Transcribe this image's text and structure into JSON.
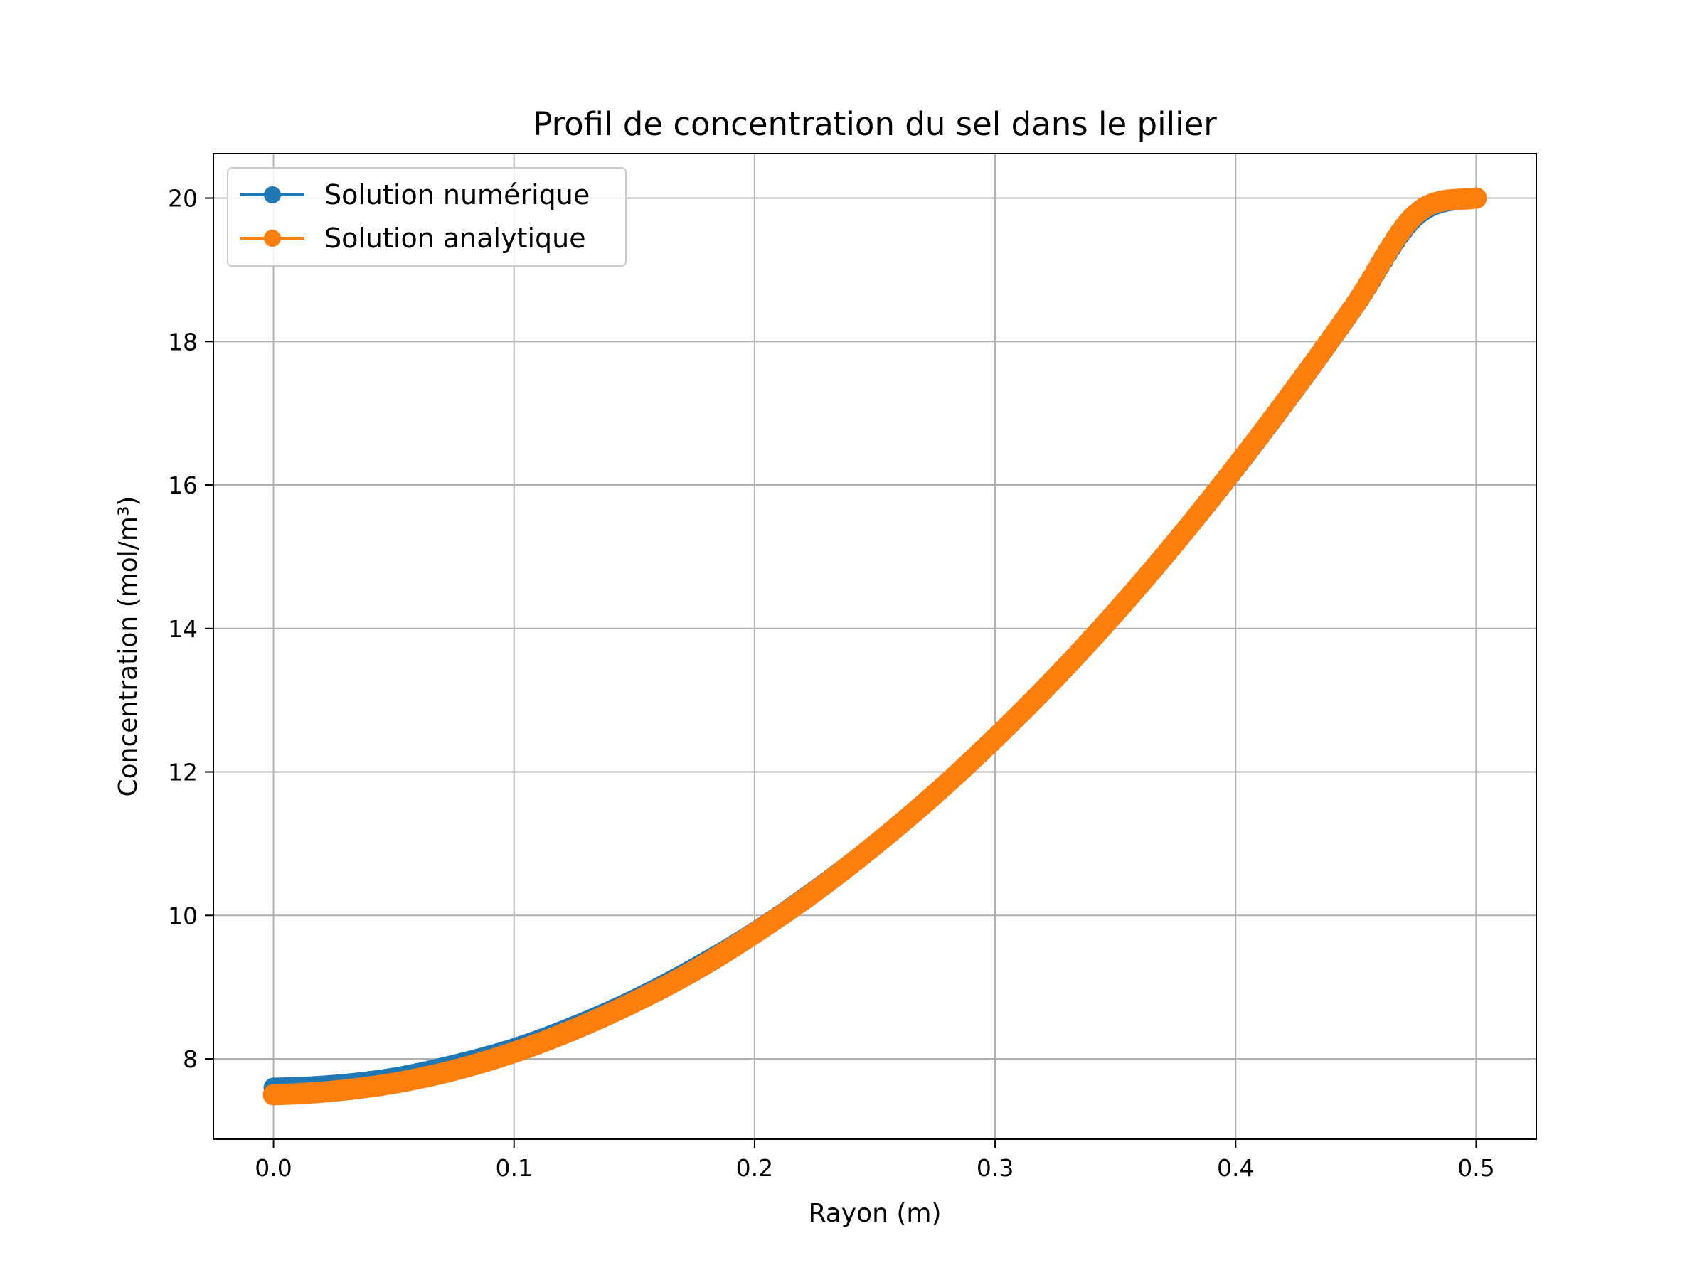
{
  "chart_data": {
    "type": "line",
    "title": "Profil de concentration du sel dans le pilier",
    "xlabel": "Rayon (m)",
    "ylabel": "Concentration (mol/m³)",
    "xlim": [
      -0.025,
      0.525
    ],
    "ylim": [
      6.88,
      20.62
    ],
    "x_ticks": [
      0.0,
      0.1,
      0.2,
      0.3,
      0.4,
      0.5
    ],
    "x_tick_labels": [
      "0.0",
      "0.1",
      "0.2",
      "0.3",
      "0.4",
      "0.5"
    ],
    "y_ticks": [
      8,
      10,
      12,
      14,
      16,
      18,
      20
    ],
    "y_tick_labels": [
      "8",
      "10",
      "12",
      "14",
      "16",
      "18",
      "20"
    ],
    "grid": true,
    "legend_position": "top-left",
    "series": [
      {
        "name": "Solution numérique",
        "color": "#1f77b4",
        "marker": "circle",
        "x": [
          0.0,
          0.025,
          0.05,
          0.075,
          0.1,
          0.125,
          0.15,
          0.175,
          0.2,
          0.225,
          0.25,
          0.275,
          0.3,
          0.325,
          0.35,
          0.375,
          0.4,
          0.425,
          0.45,
          0.475,
          0.5
        ],
        "y": [
          7.6,
          7.64,
          7.74,
          7.92,
          8.15,
          8.46,
          8.83,
          9.27,
          9.77,
          10.35,
          10.99,
          11.7,
          12.47,
          13.31,
          14.22,
          15.19,
          16.23,
          17.34,
          18.51,
          19.74,
          20.0
        ]
      },
      {
        "name": "Solution analytique",
        "color": "#ff7f0e",
        "marker": "circle",
        "x": [
          0.0,
          0.025,
          0.05,
          0.075,
          0.1,
          0.125,
          0.15,
          0.175,
          0.2,
          0.225,
          0.25,
          0.275,
          0.3,
          0.325,
          0.35,
          0.375,
          0.4,
          0.425,
          0.45,
          0.475,
          0.5
        ],
        "y": [
          7.5,
          7.55,
          7.66,
          7.84,
          8.09,
          8.41,
          8.79,
          9.23,
          9.75,
          10.33,
          10.98,
          11.69,
          12.47,
          13.31,
          14.22,
          15.2,
          16.25,
          17.36,
          18.53,
          19.78,
          20.0
        ]
      }
    ]
  }
}
